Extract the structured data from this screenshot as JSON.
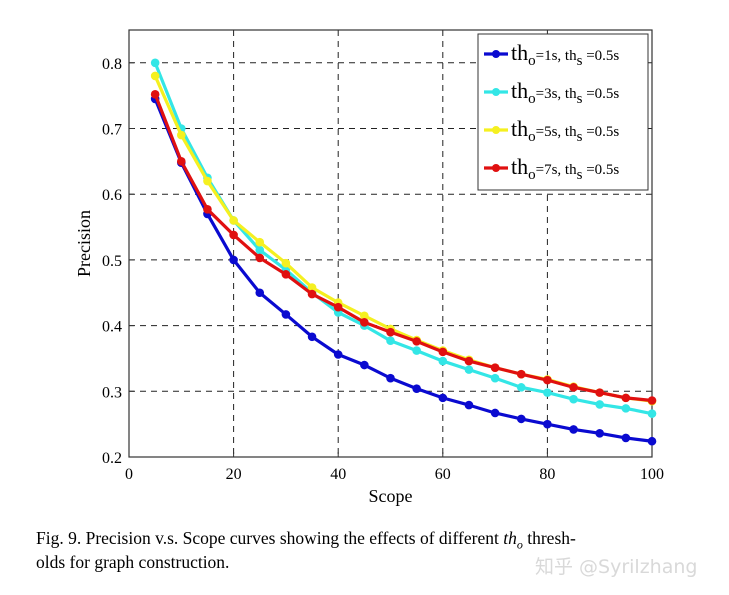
{
  "chart_data": {
    "type": "line",
    "xlabel": "Scope",
    "ylabel": "Precision",
    "xlim": [
      0,
      100
    ],
    "ylim": [
      0.2,
      0.85
    ],
    "xticks": [
      0,
      20,
      40,
      60,
      80,
      100
    ],
    "yticks": [
      0.2,
      0.3,
      0.4,
      0.5,
      0.6,
      0.7,
      0.8
    ],
    "grid": true,
    "grid_style": "dashed",
    "legend_position": "top-right",
    "x": [
      5,
      10,
      15,
      20,
      25,
      30,
      35,
      40,
      45,
      50,
      55,
      60,
      65,
      70,
      75,
      80,
      85,
      90,
      95,
      100
    ],
    "series": [
      {
        "name": "th_o=1s, th_s =0.5s",
        "label_main": "th",
        "label_sub1": "o",
        "label_mid": "=1s, th",
        "label_sub2": "s",
        "label_end": " =0.5s",
        "color": "#0a0ad0",
        "values": [
          0.745,
          0.648,
          0.57,
          0.5,
          0.45,
          0.417,
          0.383,
          0.356,
          0.34,
          0.32,
          0.304,
          0.29,
          0.279,
          0.267,
          0.258,
          0.25,
          0.242,
          0.236,
          0.229,
          0.224
        ]
      },
      {
        "name": "th_o=3s, th_s =0.5s",
        "label_main": "th",
        "label_sub1": "o",
        "label_mid": "=3s, th",
        "label_sub2": "s",
        "label_end": " =0.5s",
        "color": "#33e6e6",
        "values": [
          0.8,
          0.7,
          0.625,
          0.56,
          0.515,
          0.485,
          0.45,
          0.42,
          0.4,
          0.377,
          0.362,
          0.346,
          0.333,
          0.32,
          0.306,
          0.298,
          0.288,
          0.28,
          0.274,
          0.266
        ]
      },
      {
        "name": "th_o=5s, th_s =0.5s",
        "label_main": "th",
        "label_sub1": "o",
        "label_mid": "=5s, th",
        "label_sub2": "s",
        "label_end": " =0.5s",
        "color": "#f5f020",
        "values": [
          0.78,
          0.69,
          0.62,
          0.56,
          0.527,
          0.495,
          0.458,
          0.435,
          0.415,
          0.395,
          0.378,
          0.362,
          0.348,
          0.336,
          0.326,
          0.318,
          0.307,
          0.298,
          0.29,
          0.285
        ]
      },
      {
        "name": "th_o=7s, th_s =0.5s",
        "label_main": "th",
        "label_sub1": "o",
        "label_mid": "=7s, th",
        "label_sub2": "s",
        "label_end": " =0.5s",
        "color": "#e01010",
        "values": [
          0.752,
          0.65,
          0.577,
          0.538,
          0.503,
          0.478,
          0.448,
          0.428,
          0.405,
          0.39,
          0.376,
          0.36,
          0.346,
          0.336,
          0.326,
          0.317,
          0.306,
          0.298,
          0.29,
          0.286
        ]
      }
    ]
  },
  "caption": {
    "line1_pre": "Fig. 9.   Precision v.s. Scope curves showing the effects of different ",
    "math_main": "th",
    "math_sub": "o",
    "line1_post": " thresh-",
    "line2": "olds for graph construction."
  },
  "watermark": "知乎 @Syrilzhang"
}
